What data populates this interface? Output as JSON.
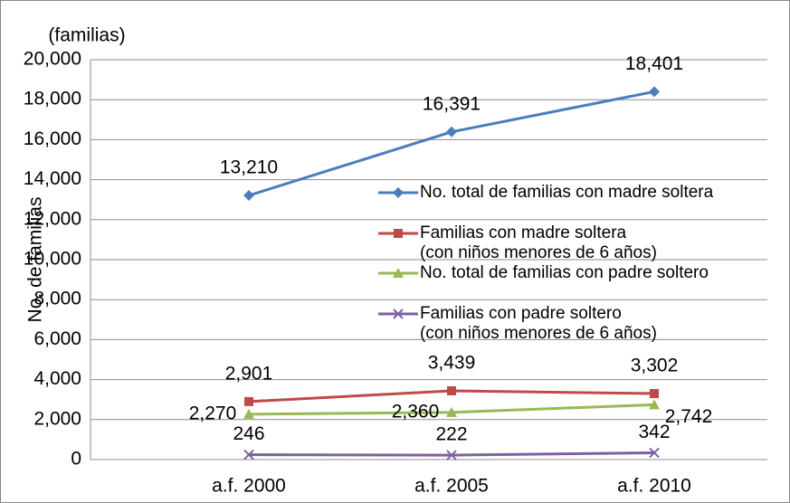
{
  "chart_data": {
    "type": "line",
    "unit_label": "(familias)",
    "y_label": "No. de familias",
    "categories": [
      "a.f. 2000",
      "a.f. 2005",
      "a.f. 2010"
    ],
    "series": [
      {
        "name": "No. total de familias con madre soltera",
        "color": "#4a7ebb",
        "marker": "diamond",
        "values": [
          13210,
          16391,
          18401
        ],
        "value_labels": [
          "13,210",
          "16,391",
          "18,401"
        ]
      },
      {
        "name": "Familias con madre soltera\n(con niños menores de 6 años)",
        "color": "#be4b48",
        "marker": "square",
        "values": [
          2901,
          3439,
          3302
        ],
        "value_labels": [
          "2,901",
          "3,439",
          "3,302"
        ]
      },
      {
        "name": "No. total de familias con padre soltero",
        "color": "#98b954",
        "marker": "triangle",
        "values": [
          2270,
          2360,
          2742
        ],
        "value_labels": [
          "2,270",
          "2,360",
          "2,742"
        ]
      },
      {
        "name": "Familias con padre soltero\n(con niños menores de 6 años)",
        "color": "#7d60a0",
        "marker": "x",
        "values": [
          246,
          222,
          342
        ],
        "value_labels": [
          "246",
          "222",
          "342"
        ]
      }
    ],
    "ylim": [
      0,
      20000
    ],
    "yticks": [
      0,
      {
        "value": 2000,
        "label": "2,000"
      },
      {
        "value": 4000,
        "label": "4,000"
      },
      {
        "value": 6000,
        "label": "6,000"
      },
      {
        "value": 8000,
        "label": "8,000"
      },
      {
        "value": 10000,
        "label": "10,000"
      },
      {
        "value": 12000,
        "label": "12,000"
      },
      {
        "value": 14000,
        "label": "14,000"
      },
      {
        "value": 16000,
        "label": "16,000"
      },
      {
        "value": 18000,
        "label": "18,000"
      },
      {
        "value": 20000,
        "label": "20,000"
      }
    ],
    "grid": true
  }
}
